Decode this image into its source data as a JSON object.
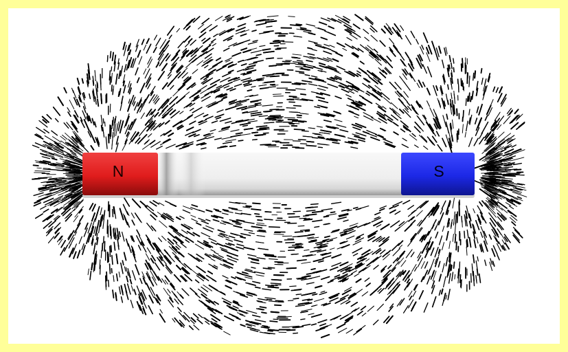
{
  "figure": {
    "subject": "bar-magnet-with-iron-filings",
    "north_label": "N",
    "south_label": "S",
    "colors": {
      "border": "#ffff99",
      "background": "#ffffff",
      "north_pole": "#e02222",
      "south_pole": "#1c28e6",
      "bar_body": "#eeeeee",
      "filings": "#000000"
    }
  }
}
